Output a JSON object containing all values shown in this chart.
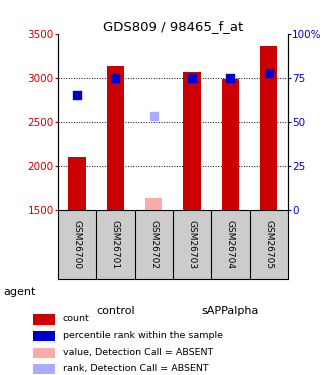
{
  "title": "GDS809 / 98465_f_at",
  "samples": [
    "GSM26700",
    "GSM26701",
    "GSM26702",
    "GSM26703",
    "GSM26704",
    "GSM26705"
  ],
  "bar_values": [
    2100,
    3130,
    null,
    3070,
    2990,
    3360
  ],
  "bar_absent_values": [
    null,
    null,
    1640,
    null,
    null,
    null
  ],
  "blue_dot_values": [
    2800,
    3000,
    null,
    3000,
    3000,
    3050
  ],
  "blue_absent_dot_values": [
    null,
    null,
    2570,
    null,
    null,
    null
  ],
  "bar_color": "#cc0000",
  "bar_absent_color": "#ffaaaa",
  "blue_dot_color": "#0000cc",
  "blue_absent_dot_color": "#aaaaff",
  "groups": [
    {
      "label": "control",
      "samples": [
        0,
        1,
        2
      ],
      "color": "#aaffaa"
    },
    {
      "label": "sAPPalpha",
      "samples": [
        3,
        4,
        5
      ],
      "color": "#44cc44"
    }
  ],
  "ylim_left": [
    1500,
    3500
  ],
  "ylim_right": [
    0,
    100
  ],
  "yticks_left": [
    1500,
    2000,
    2500,
    3000,
    3500
  ],
  "yticks_right": [
    0,
    25,
    50,
    75,
    100
  ],
  "ytick_labels_left": [
    "1500",
    "2000",
    "2500",
    "3000",
    "3500"
  ],
  "ytick_labels_right": [
    "0",
    "25",
    "50",
    "75",
    "100%"
  ],
  "left_axis_color": "#cc0000",
  "right_axis_color": "#0000cc",
  "grid_color": "#000000",
  "background_color": "#ffffff",
  "sample_box_color": "#cccccc",
  "agent_label": "agent",
  "bar_width": 0.45,
  "dot_size": 30,
  "legend_items": [
    {
      "color": "#cc0000",
      "label": "count"
    },
    {
      "color": "#0000cc",
      "label": "percentile rank within the sample"
    },
    {
      "color": "#ffaaaa",
      "label": "value, Detection Call = ABSENT"
    },
    {
      "color": "#aaaaff",
      "label": "rank, Detection Call = ABSENT"
    }
  ]
}
